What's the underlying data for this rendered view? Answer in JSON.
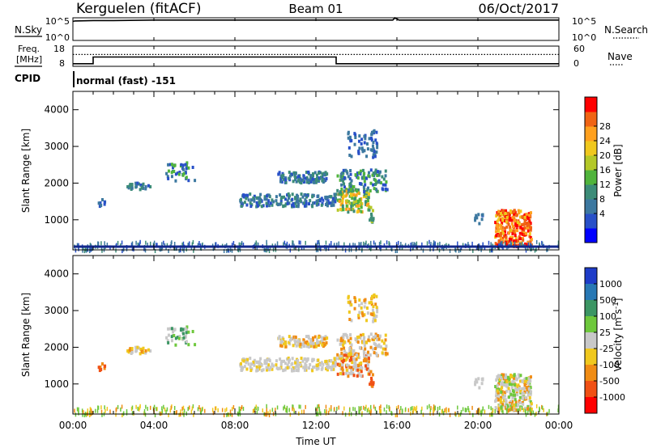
{
  "header": {
    "station": "Kerguelen (fitACF)",
    "beam": "Beam 01",
    "date": "06/Oct/2017"
  },
  "top_panels": {
    "nsky_label": "N.Sky",
    "nsky_ticks": [
      "10^5",
      "10^0"
    ],
    "nsearch_label": "N.Search",
    "nsearch_ticks": [
      "10^5",
      "10^0"
    ],
    "freq_label_1": "Freq.",
    "freq_label_2": "[MHz]",
    "freq_ticks": [
      "18",
      "8"
    ],
    "nave_label": "Nave",
    "nave_ticks": [
      "60",
      "0"
    ],
    "cpid_label": "CPID",
    "cpid_text": "normal (fast) -151"
  },
  "chart_data": [
    {
      "type": "line",
      "name": "nsky-nsearch",
      "x_hours": [
        0,
        0.1,
        1,
        2,
        4,
        6,
        8,
        10,
        12,
        14,
        15.8,
        15.9,
        16.1,
        18,
        20,
        22,
        24
      ],
      "nsky_level": [
        4.2,
        4.3,
        4.4,
        4.4,
        4.5,
        4.5,
        4.5,
        4.5,
        4.5,
        4.5,
        4.5,
        5.0,
        4.5,
        4.5,
        4.5,
        4.5,
        4.5
      ]
    },
    {
      "type": "line",
      "name": "freq-nave",
      "freq_mhz": [
        [
          0,
          9.3
        ],
        [
          1,
          9.3
        ],
        [
          1,
          12.6
        ],
        [
          13,
          12.6
        ],
        [
          13,
          9.3
        ],
        [
          24,
          9.3
        ]
      ],
      "nave": [
        [
          0,
          35
        ],
        [
          24,
          35
        ]
      ]
    },
    {
      "type": "heatmap",
      "name": "power",
      "ylabel": "Slant Range [km]",
      "xlim": [
        0,
        24
      ],
      "ylim": [
        180,
        4500
      ],
      "y_ticks": [
        1000,
        2000,
        3000,
        4000
      ],
      "colorbar_label": "Power [dB]",
      "colorbar_ticks": [
        "4",
        "8",
        "12",
        "16",
        "20",
        "24",
        "28"
      ],
      "colorbar_colors": [
        "#0000ff",
        "#2850c8",
        "#3c78a0",
        "#3c8c78",
        "#50b43c",
        "#b4c828",
        "#f0c81e",
        "#ffa01e",
        "#f06414",
        "#ff0000"
      ]
    },
    {
      "type": "heatmap",
      "name": "velocity",
      "ylabel": "Slant Range [km]",
      "xlabel": "Time UT",
      "xlim": [
        0,
        24
      ],
      "ylim": [
        180,
        4500
      ],
      "y_ticks": [
        1000,
        2000,
        3000,
        4000
      ],
      "x_ticks": [
        "00:00",
        "04:00",
        "08:00",
        "12:00",
        "16:00",
        "20:00",
        "00:00"
      ],
      "colorbar_label": "Velocity [m s^-1]",
      "colorbar_ticks": [
        "1000",
        "500",
        "100",
        "25",
        "-25",
        "-100",
        "-500",
        "-1000"
      ],
      "colorbar_colors": [
        "#1e3cc8",
        "#2878b4",
        "#3c9664",
        "#6ec83c",
        "#c8c8c8",
        "#f0c81e",
        "#f08c14",
        "#f05014",
        "#ff0000"
      ]
    }
  ]
}
